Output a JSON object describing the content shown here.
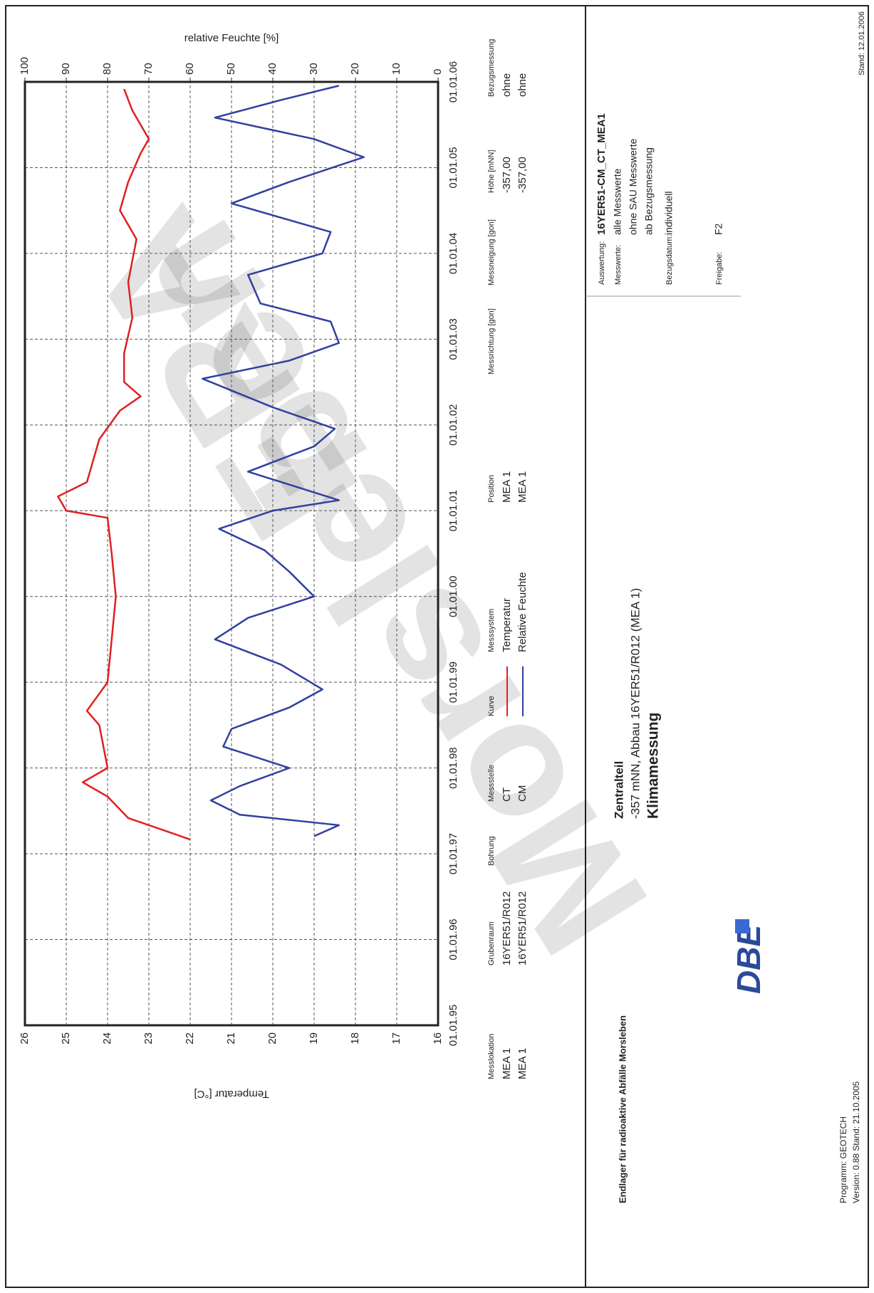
{
  "chart_data": {
    "type": "line",
    "ylabel": "Temperatur [°C]",
    "y2label": "relative Feuchte [%]",
    "xlim": [
      "01.01.95",
      "01.01.06"
    ],
    "xticks": [
      "01.01.95",
      "01.01.96",
      "01.01.97",
      "01.01.98",
      "01.01.99",
      "01.01.00",
      "01.01.01",
      "01.01.02",
      "01.01.03",
      "01.01.04",
      "01.01.05",
      "01.01.06"
    ],
    "ylim": [
      16,
      26
    ],
    "yticks": [
      16,
      17,
      18,
      19,
      20,
      21,
      22,
      23,
      24,
      25,
      26
    ],
    "y2lim": [
      0,
      100
    ],
    "y2ticks": [
      0,
      10,
      20,
      30,
      40,
      50,
      60,
      70,
      80,
      90,
      100
    ],
    "grid": true,
    "series": [
      {
        "name": "Temperatur",
        "color": "#e02020",
        "x": [
          "01.03.97",
          "01.06.97",
          "01.09.97",
          "01.11.97",
          "01.01.98",
          "01.07.98",
          "01.09.98",
          "01.01.99",
          "01.07.99",
          "01.01.00",
          "01.07.00",
          "01.12.00",
          "01.01.01",
          "01.03.01",
          "01.05.01",
          "01.11.01",
          "01.03.02",
          "01.05.02",
          "01.07.02",
          "01.11.02",
          "01.04.03",
          "01.09.03",
          "01.03.04",
          "01.07.04",
          "01.11.04",
          "01.03.05",
          "01.05.05",
          "01.09.05",
          "01.12.05"
        ],
        "values": [
          22.0,
          23.5,
          24.0,
          24.6,
          24.0,
          24.2,
          24.5,
          24.0,
          23.9,
          23.8,
          23.9,
          24.0,
          25.0,
          25.2,
          24.5,
          24.2,
          23.7,
          23.2,
          23.6,
          23.6,
          23.4,
          23.5,
          23.3,
          23.7,
          23.5,
          23.2,
          23.0,
          23.4,
          23.6
        ]
      },
      {
        "name": "Relative Feuchte",
        "color": "#3040a0",
        "axis": "y2",
        "x": [
          "15.03.97",
          "01.05.97",
          "15.06.97",
          "15.08.97",
          "15.10.97",
          "01.01.98",
          "01.04.98",
          "15.06.98",
          "15.09.98",
          "01.12.98",
          "15.03.99",
          "01.07.99",
          "01.10.99",
          "01.01.00",
          "15.04.00",
          "15.07.00",
          "15.10.00",
          "01.01.01",
          "15.02.01",
          "15.06.01",
          "01.10.01",
          "15.12.01",
          "15.03.02",
          "15.07.02",
          "01.10.02",
          "15.12.02",
          "15.03.03",
          "01.06.03",
          "01.10.03",
          "01.01.04",
          "01.04.04",
          "01.08.04",
          "01.11.04",
          "15.02.05",
          "01.05.05",
          "01.08.05",
          "15.10.05",
          "15.12.05"
        ],
        "values": [
          30,
          24,
          48,
          55,
          48,
          36,
          52,
          50,
          36,
          28,
          38,
          54,
          46,
          30,
          36,
          42,
          53,
          40,
          24,
          46,
          30,
          25,
          40,
          57,
          36,
          24,
          26,
          43,
          46,
          28,
          26,
          50,
          36,
          18,
          30,
          54,
          38,
          24
        ]
      }
    ]
  },
  "legend_table": {
    "headers": [
      "Messlokation",
      "Grubenraum",
      "Bohrung",
      "Messstelle",
      "Kurve",
      "Messsystem",
      "Position",
      "Messrichtung [gon]",
      "Messneigung [gon]",
      "Höhe [mNN]",
      "Bezugsmessung"
    ],
    "rows": [
      [
        "MEA 1",
        "16YER51/R012",
        null,
        "CT",
        null,
        null,
        "MEA 1",
        null,
        null,
        "-357,00",
        "ohne"
      ],
      [
        "MEA 1",
        "16YER51/R012",
        null,
        "CM",
        null,
        null,
        "MEA 1",
        null,
        null,
        "-357,00",
        "ohne"
      ]
    ]
  },
  "footer": {
    "institution": "Endlager für radioaktive Abfälle Morsleben",
    "logo": "DBE",
    "program": "Programm: GEOTECH",
    "version": "Version: 0.88   Stand: 21.10.2005",
    "area": "Zentralteil",
    "location": "-357 mNN, Abbau 16YER51/R012 (MEA 1)",
    "measurement": "Klimamessung",
    "id": "16YER51-CM_CT_MEA1",
    "details": [
      [
        "Auswertung:",
        "alle Messwerte"
      ],
      [
        "Messwerte:",
        "ohne SAU Messwerte"
      ],
      [
        null,
        "ab Bezugsmessung"
      ],
      [
        "Bezugsdatum:",
        "individuell"
      ],
      [
        "Freigabe:",
        "F2"
      ]
    ],
    "stand": "Stand: 12.01.2006"
  },
  "watermark": [
    "ERA",
    "Morsleben"
  ]
}
